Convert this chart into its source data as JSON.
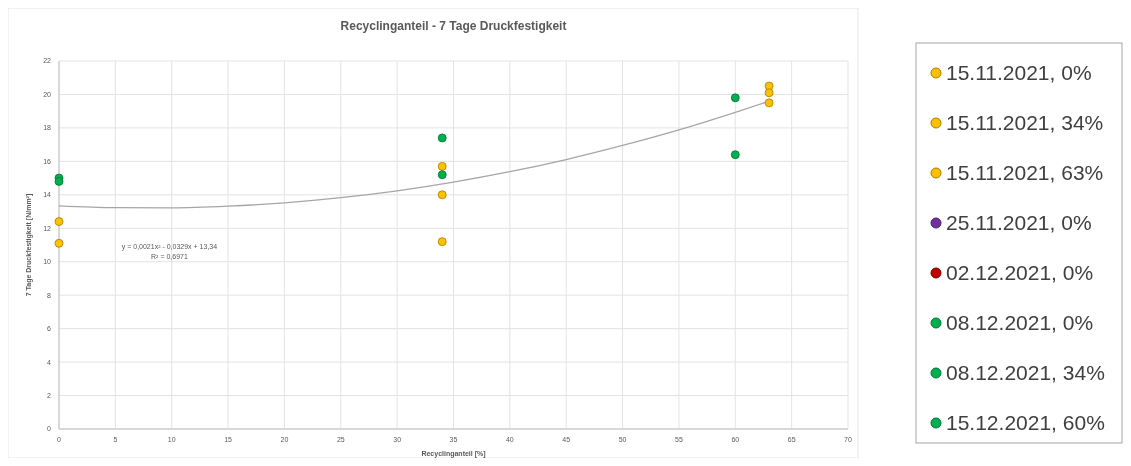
{
  "chart_data": {
    "type": "scatter",
    "title": "Recyclinganteil - 7 Tage Druckfestigkeit",
    "xlabel": "Recyclinganteil [%]",
    "ylabel": "7 Tage Druckfestigkeit [N/mm²]",
    "xlim": [
      0,
      70
    ],
    "xticks": [
      0,
      5,
      10,
      15,
      20,
      25,
      30,
      35,
      40,
      45,
      50,
      55,
      60,
      65,
      70
    ],
    "ylim": [
      0,
      22
    ],
    "yticks": [
      0,
      2,
      4,
      6,
      8,
      10,
      12,
      14,
      16,
      18,
      20,
      22
    ],
    "grid": true,
    "legend": "right",
    "marker": "circle",
    "annotations": [
      "y = 0,0021x² - 0,0329x + 13,34",
      "R² = 0,6971"
    ],
    "series": [
      {
        "name": "15.11.2021, 0%",
        "color": "#ffc000",
        "x": [
          0,
          0
        ],
        "values": [
          12.4,
          11.1
        ]
      },
      {
        "name": "15.11.2021, 34%",
        "color": "#ffc000",
        "x": [
          34,
          34,
          34
        ],
        "values": [
          15.7,
          14.0,
          11.2
        ]
      },
      {
        "name": "15.11.2021, 63%",
        "color": "#ffc000",
        "x": [
          63,
          63,
          63
        ],
        "values": [
          20.5,
          20.1,
          19.5
        ]
      },
      {
        "name": "25.11.2021, 0%",
        "color": "#7030a0"
      },
      {
        "name": "02.12.2021, 0%",
        "color": "#c00000"
      },
      {
        "name": "08.12.2021, 0%",
        "color": "#00b050",
        "x": [
          0,
          0
        ],
        "values": [
          15.0,
          14.8
        ]
      },
      {
        "name": "08.12.2021, 34%",
        "color": "#00b050",
        "x": [
          34,
          34
        ],
        "values": [
          17.4,
          15.2
        ]
      },
      {
        "name": "15.12.2021, 60%",
        "color": "#00b050",
        "x": [
          60,
          60
        ],
        "values": [
          19.8,
          16.4
        ]
      },
      {
        "type": "line",
        "marker": "none",
        "color": "#a6a6a6",
        "x": [
          0,
          5,
          10,
          15,
          20,
          25,
          30,
          35,
          40,
          45,
          50,
          55,
          60,
          63
        ],
        "values": [
          13.34,
          13.23,
          13.22,
          13.32,
          13.52,
          13.83,
          14.24,
          14.76,
          15.38,
          16.11,
          16.95,
          17.88,
          18.93,
          19.6
        ]
      }
    ]
  }
}
